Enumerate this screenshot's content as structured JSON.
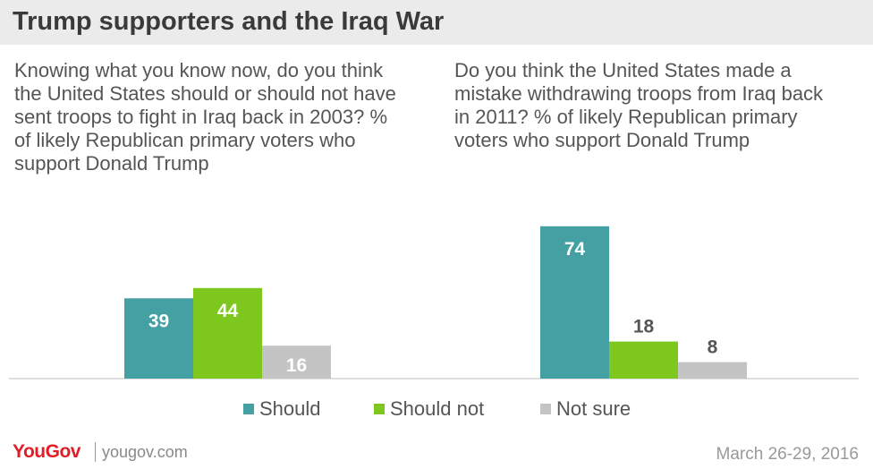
{
  "title": "Trump supporters and the Iraq War",
  "questions": [
    "Knowing what you know now, do you think the United States should or should not have sent troops to fight in Iraq back in 2003? % of likely Republican primary voters who support Donald Trump",
    "Do you think the United States made a mistake withdrawing troops from Iraq back in 2011? % of likely Republican primary voters who support Donald Trump"
  ],
  "legend": [
    {
      "label": "Should",
      "color": "#45a0a3"
    },
    {
      "label": "Should not",
      "color": "#7dc71f"
    },
    {
      "label": "Not sure",
      "color": "#c4c4c4"
    }
  ],
  "footer": {
    "brand": "YouGov",
    "site": "yougov.com",
    "date": "March 26-29, 2016"
  },
  "chart_data": [
    {
      "type": "bar",
      "categories": [
        "Should",
        "Should not",
        "Not sure"
      ],
      "values": [
        39,
        44,
        16
      ],
      "colors": [
        "#45a0a3",
        "#7dc71f",
        "#c4c4c4"
      ]
    },
    {
      "type": "bar",
      "categories": [
        "Should",
        "Should not",
        "Not sure"
      ],
      "values": [
        74,
        18,
        8
      ],
      "colors": [
        "#45a0a3",
        "#7dc71f",
        "#c4c4c4"
      ]
    }
  ]
}
